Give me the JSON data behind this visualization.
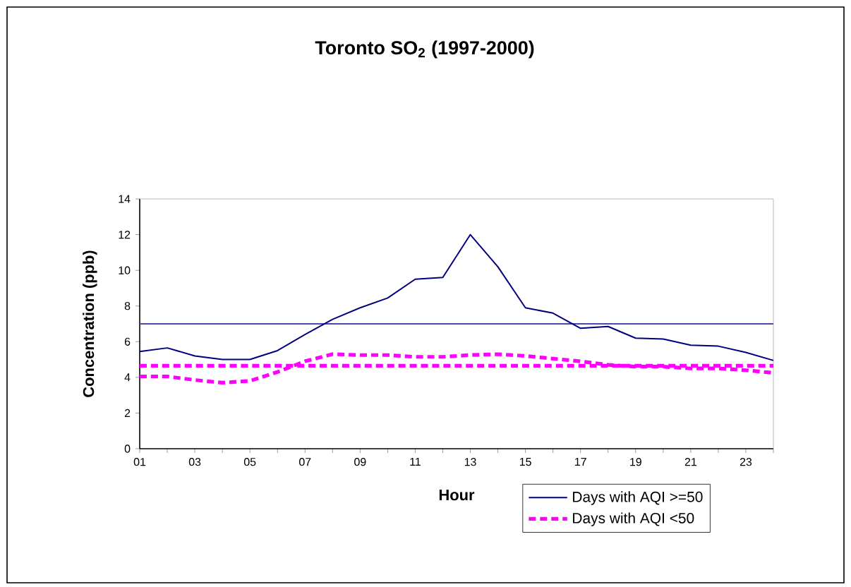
{
  "chart_data": {
    "type": "line",
    "title": "Toronto SO$_{2}$ (1997-2000)",
    "xlabel": "Hour",
    "ylabel": "Concentration  (ppb)",
    "categories": [
      "01",
      null,
      "03",
      null,
      "05",
      null,
      "07",
      null,
      "09",
      null,
      "11",
      null,
      "13",
      null,
      "15",
      null,
      "17",
      null,
      "19",
      null,
      "21",
      null,
      "23",
      null
    ],
    "series": [
      {
        "name": "Days with AQI >=50",
        "color": "#000080",
        "line_style": "solid",
        "values": [
          5.45,
          5.65,
          5.2,
          5.0,
          5.0,
          5.5,
          6.4,
          7.25,
          7.9,
          8.45,
          9.5,
          9.6,
          12.0,
          10.2,
          7.9,
          7.6,
          6.75,
          6.85,
          6.2,
          6.15,
          5.8,
          5.75,
          5.4,
          4.95
        ]
      },
      {
        "name": "Days with AQI <50",
        "color": "#ff00ff",
        "line_style": "dashed",
        "values": [
          4.05,
          4.05,
          3.85,
          3.7,
          3.8,
          4.3,
          4.9,
          5.3,
          5.25,
          5.25,
          5.15,
          5.15,
          5.25,
          5.3,
          5.2,
          5.05,
          4.9,
          4.7,
          4.6,
          4.6,
          4.5,
          4.5,
          4.4,
          4.25
        ]
      }
    ],
    "ref_lines": [
      {
        "axis": "y",
        "value": 7.0,
        "color": "#4a4aa8",
        "line_style": "solid"
      },
      {
        "axis": "y",
        "value": 4.65,
        "color": "#ff00ff",
        "line_style": "dashed"
      }
    ],
    "ylim": [
      0,
      14
    ],
    "yticks": [
      0,
      2,
      4,
      6,
      8,
      10,
      12,
      14
    ],
    "grid": false,
    "legend": "bottom right",
    "marker": "none"
  }
}
